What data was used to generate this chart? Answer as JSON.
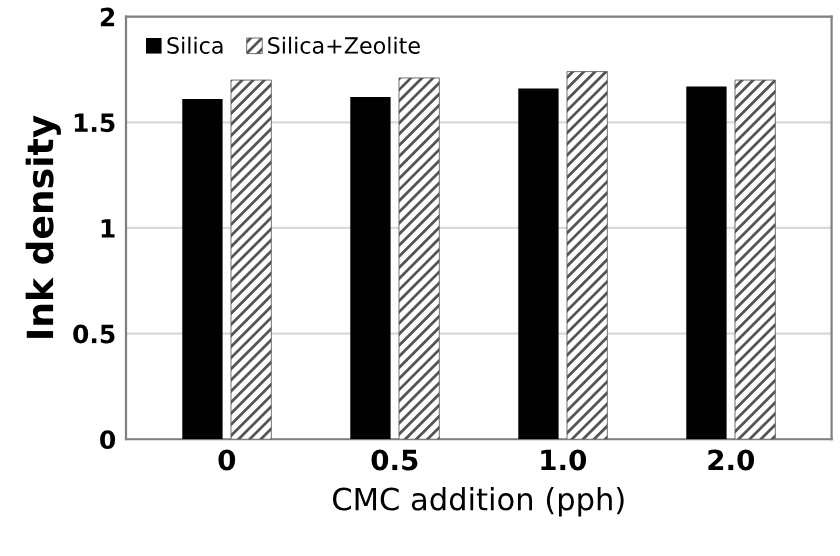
{
  "chart_data": {
    "type": "bar",
    "xlabel": "CMC addition (pph)",
    "ylabel": "Ink density",
    "categories": [
      "0",
      "0.5",
      "1.0",
      "2.0"
    ],
    "series": [
      {
        "name": "Silica",
        "color": "#000000",
        "values": [
          1.61,
          1.62,
          1.66,
          1.67
        ]
      },
      {
        "name": "Silica+Zeolite",
        "color": "#555555",
        "values": [
          1.7,
          1.71,
          1.74,
          1.7
        ]
      }
    ],
    "ylim": [
      0,
      2
    ],
    "yticks": [
      0,
      0.5,
      1,
      1.5,
      2
    ],
    "grid": "y",
    "legend": "top left"
  }
}
